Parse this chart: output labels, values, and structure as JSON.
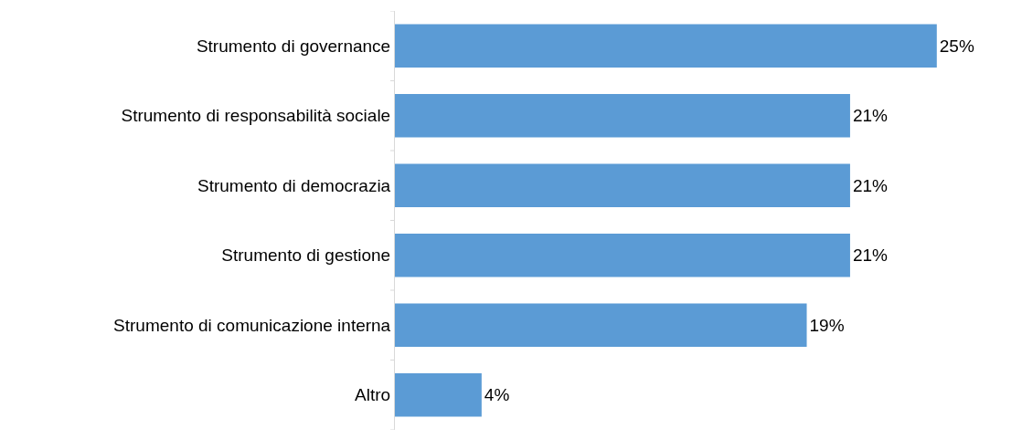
{
  "chart_data": {
    "type": "bar",
    "orientation": "horizontal",
    "categories": [
      "Strumento di governance",
      "Strumento di responsabilità sociale",
      "Strumento di democrazia",
      "Strumento di gestione",
      "Strumento di comunicazione interna",
      "Altro"
    ],
    "values": [
      25,
      21,
      21,
      21,
      19,
      4
    ],
    "value_labels": [
      "25%",
      "21%",
      "21%",
      "21%",
      "19%",
      "4%"
    ],
    "color": "#5b9bd5",
    "tick_labels": "y"
  }
}
